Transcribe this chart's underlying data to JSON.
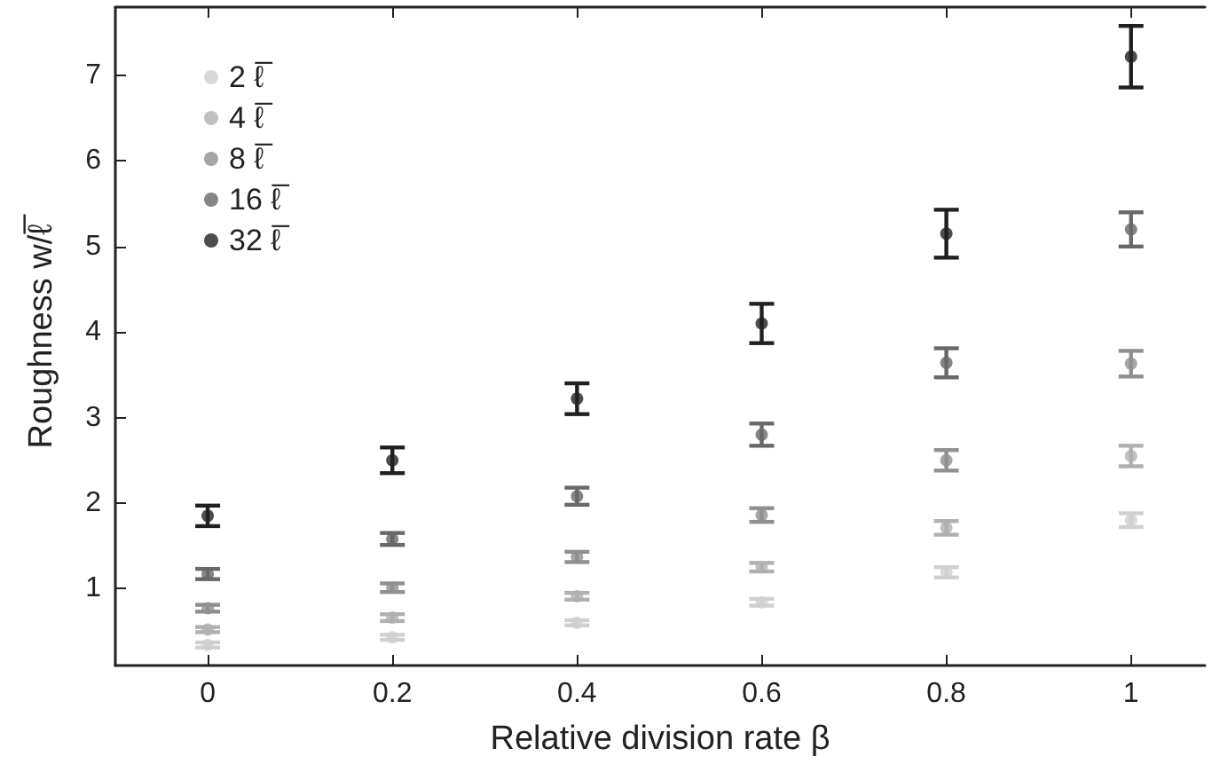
{
  "chart_data": {
    "type": "scatter",
    "xlabel": "Relative division rate β",
    "ylabel": "Roughness w/ℓ̅",
    "marker": "circle",
    "legend": "top left",
    "grid": false,
    "x": [
      0,
      0.2,
      0.4,
      0.6,
      0.8,
      1
    ],
    "xlim": [
      -0.1,
      1.08
    ],
    "xticks": [
      0,
      0.2,
      0.4,
      0.6,
      0.8,
      1
    ],
    "ylim": [
      0.1,
      7.8
    ],
    "yticks": [
      1,
      2,
      3,
      4,
      5,
      6,
      7
    ],
    "series": [
      {
        "name": "2 ℓ̅",
        "color": "#d0d0d0",
        "values": [
          0.34,
          0.43,
          0.6,
          0.84,
          1.19,
          1.8
        ],
        "errors": [
          0.03,
          0.03,
          0.03,
          0.04,
          0.06,
          0.08
        ]
      },
      {
        "name": "4 ℓ̅",
        "color": "#b0b0b0",
        "values": [
          0.52,
          0.66,
          0.91,
          1.25,
          1.71,
          2.55
        ],
        "errors": [
          0.03,
          0.04,
          0.04,
          0.05,
          0.08,
          0.12
        ]
      },
      {
        "name": "8 ℓ̅",
        "color": "#909090",
        "values": [
          0.77,
          1.01,
          1.37,
          1.86,
          2.5,
          3.63
        ],
        "errors": [
          0.04,
          0.05,
          0.06,
          0.08,
          0.12,
          0.15
        ]
      },
      {
        "name": "16 ℓ̅",
        "color": "#686868",
        "values": [
          1.17,
          1.58,
          2.08,
          2.8,
          3.64,
          5.2
        ],
        "errors": [
          0.06,
          0.07,
          0.1,
          0.13,
          0.17,
          0.2
        ]
      },
      {
        "name": "32 ℓ̅",
        "color": "#202020",
        "values": [
          1.85,
          2.5,
          3.22,
          4.1,
          5.15,
          7.22
        ],
        "errors": [
          0.12,
          0.15,
          0.18,
          0.23,
          0.28,
          0.36
        ]
      }
    ]
  }
}
